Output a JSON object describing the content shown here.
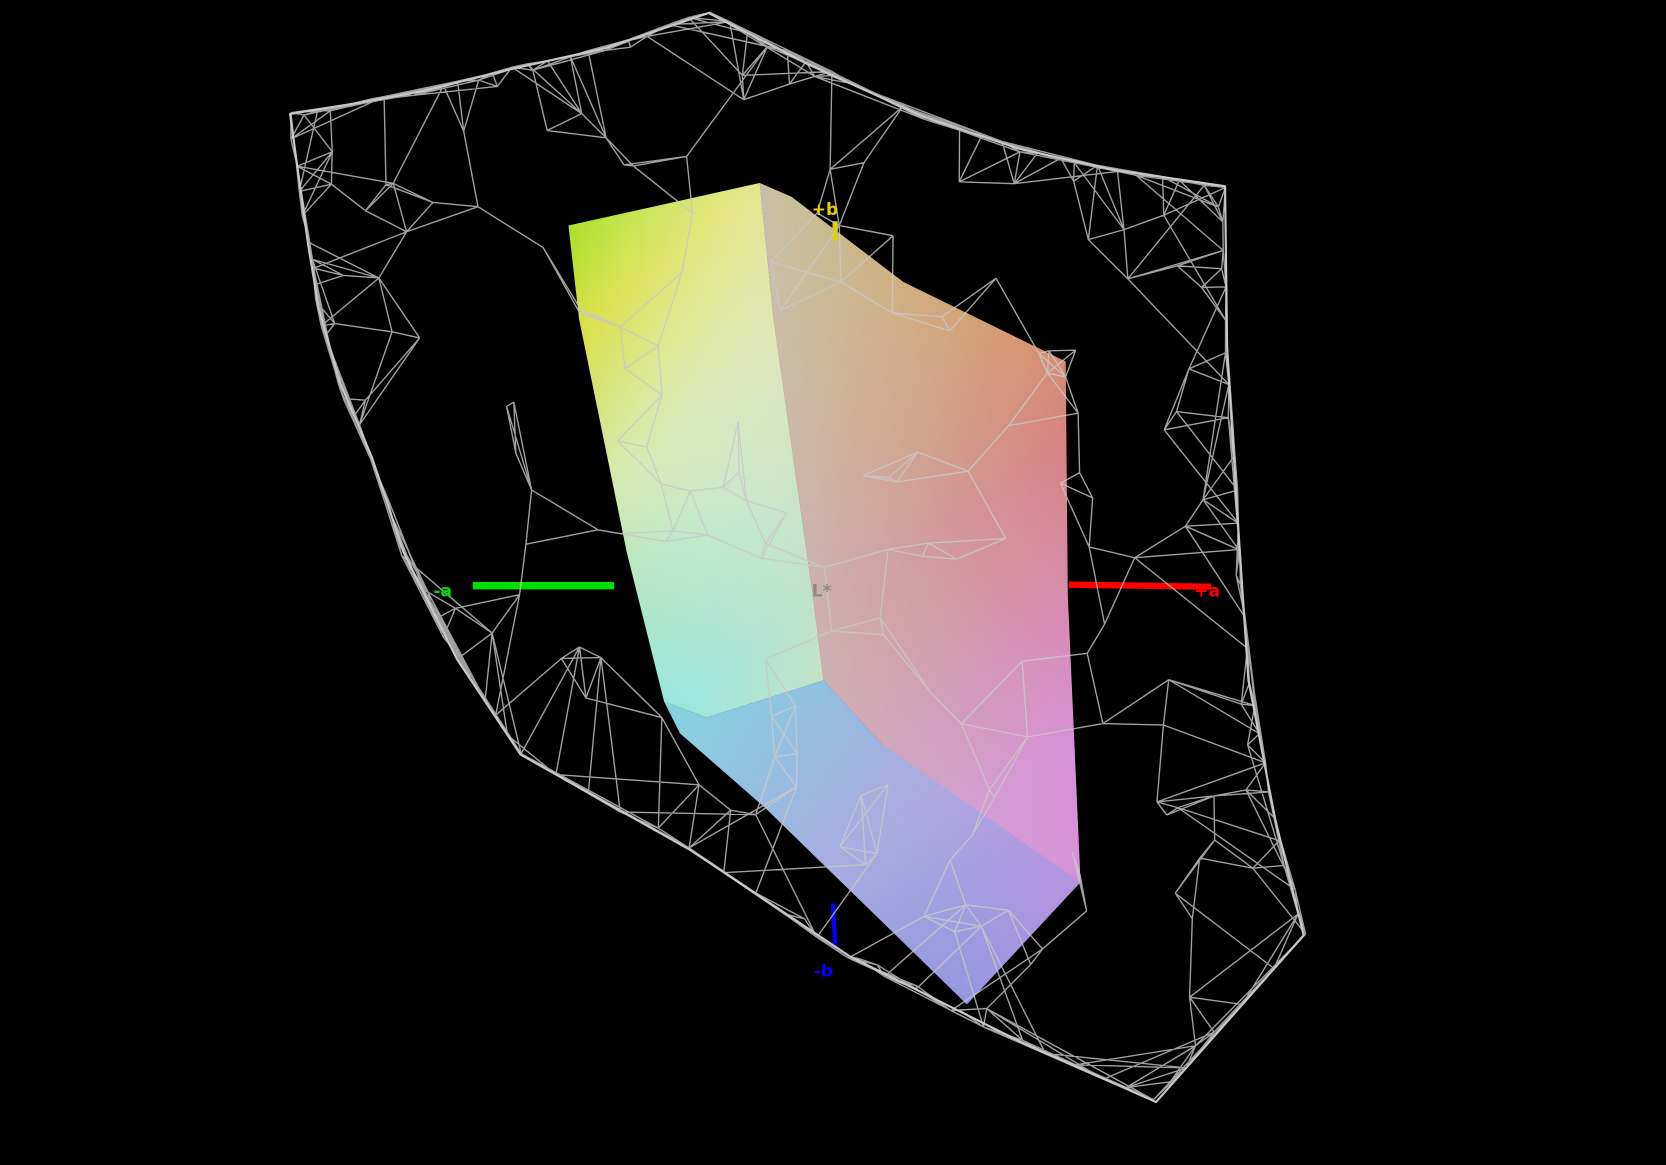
{
  "view": {
    "background": "#000000",
    "wireframe_color": "#c8c8c8",
    "axes": {
      "plus_a": {
        "label": "+a",
        "color": "#ff0000"
      },
      "minus_a": {
        "label": "-a",
        "color": "#00e000"
      },
      "plus_b": {
        "label": "+b",
        "color": "#e0d000"
      },
      "minus_b": {
        "label": "-b",
        "color": "#0000ff"
      },
      "lightness": {
        "label": "L*",
        "color": "#8a8a8a"
      }
    }
  }
}
